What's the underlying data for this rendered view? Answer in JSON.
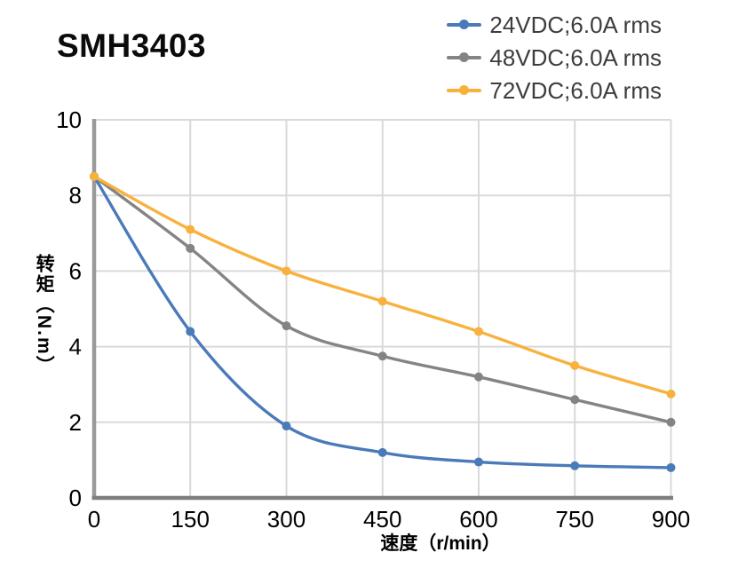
{
  "chart_data": {
    "type": "line",
    "title": "SMH3403",
    "xlabel": "速度（r/min）",
    "ylabel": "转矩（N.m）",
    "x": [
      0,
      150,
      300,
      450,
      600,
      750,
      900
    ],
    "series": [
      {
        "name": "24VDC;6.0A rms",
        "color": "#4a7ab8",
        "values": [
          8.5,
          4.4,
          1.9,
          1.2,
          0.95,
          0.85,
          0.8
        ]
      },
      {
        "name": "48VDC;6.0A rms",
        "color": "#848484",
        "values": [
          8.5,
          6.6,
          4.55,
          3.75,
          3.2,
          2.6,
          2.0
        ]
      },
      {
        "name": "72VDC;6.0A rms",
        "color": "#f8b13d",
        "values": [
          8.5,
          7.1,
          6.0,
          5.2,
          4.4,
          3.5,
          2.75
        ]
      }
    ],
    "xlim": [
      0,
      900
    ],
    "ylim": [
      0,
      10
    ],
    "xticks": [
      0,
      150,
      300,
      450,
      600,
      750,
      900
    ],
    "yticks": [
      0,
      2,
      4,
      6,
      8,
      10
    ],
    "grid": true,
    "legend_position": "top-right",
    "marker": "circle",
    "colors": {
      "grid": "#d9d9d9",
      "axis_left": "#9a9a9a",
      "axis_bottom": "#7f7f7f",
      "tick_text": "#000000",
      "legend_text": "#3d3d3d",
      "title_text": "#0b0b0b",
      "background": "#ffffff"
    }
  }
}
